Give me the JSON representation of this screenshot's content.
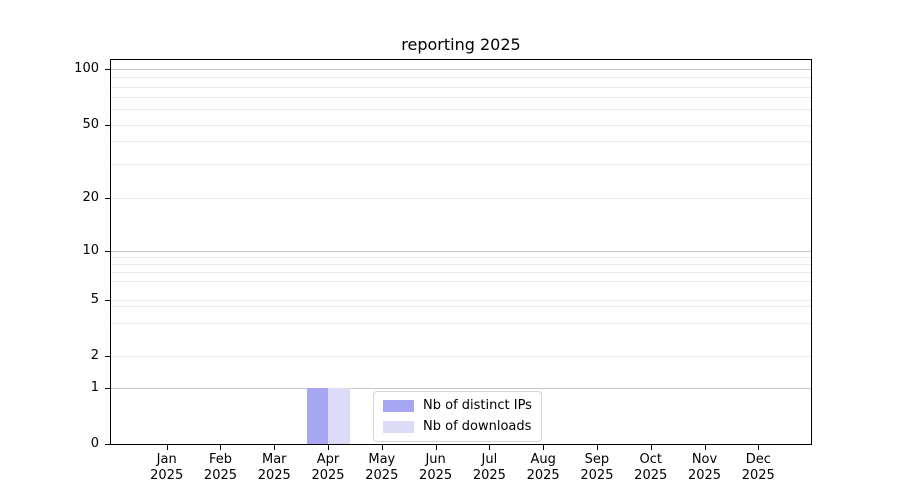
{
  "title": "reporting 2025",
  "colors": {
    "grid_major_decade": "#c6c6c6",
    "grid_minor": "#e9e9e9",
    "axis": "#000000",
    "legend_border": "#d5d5d5",
    "background": "#ffffff"
  },
  "legend": {
    "items": [
      "Nb of distinct IPs",
      "Nb of downloads"
    ]
  },
  "chart_data": {
    "type": "bar",
    "title": "reporting 2025",
    "categories": [
      "Jan 2025",
      "Feb 2025",
      "Mar 2025",
      "Apr 2025",
      "May 2025",
      "Jun 2025",
      "Jul 2025",
      "Aug 2025",
      "Sep 2025",
      "Oct 2025",
      "Nov 2025",
      "Dec 2025"
    ],
    "series": [
      {
        "name": "Nb of distinct IPs",
        "color": "#a6a6f2",
        "values": [
          0,
          0,
          0,
          1,
          0,
          0,
          0,
          0,
          0,
          0,
          0,
          0
        ]
      },
      {
        "name": "Nb of downloads",
        "color": "#dcdcf8",
        "values": [
          0,
          0,
          0,
          1,
          0,
          0,
          0,
          0,
          0,
          0,
          0,
          0
        ]
      }
    ],
    "xlabel": "",
    "ylabel": "",
    "yscale": "log-like",
    "y_major_ticks": [
      0,
      1,
      2,
      5,
      10,
      20,
      50,
      100
    ],
    "y_minor_ticks": [
      3,
      4,
      6,
      7,
      8,
      9,
      30,
      40,
      60,
      70,
      80,
      90
    ],
    "ylim": [
      0,
      110
    ],
    "grid": "horizontal, major decades darker + others lighter",
    "legend_position": "inside bottom, right of center"
  }
}
